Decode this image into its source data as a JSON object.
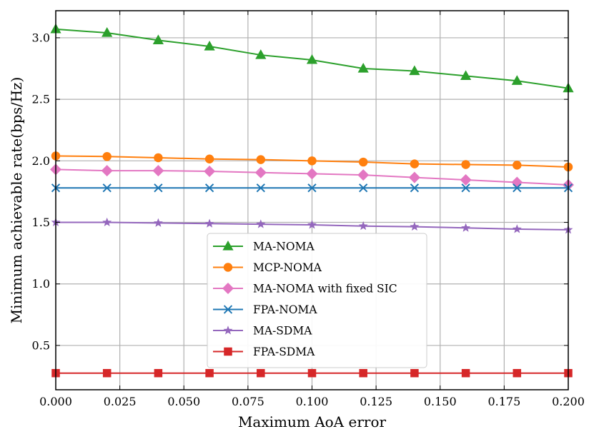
{
  "chart_data": {
    "type": "line",
    "xlabel": "Maximum AoA error",
    "ylabel": "Minimum achievable rate(bps/Hz)",
    "xlim": [
      0,
      0.2
    ],
    "ylim": [
      0.14,
      3.22
    ],
    "xticks": [
      "0.000",
      "0.025",
      "0.050",
      "0.075",
      "0.100",
      "0.125",
      "0.150",
      "0.175",
      "0.200"
    ],
    "xtick_values": [
      0,
      0.025,
      0.05,
      0.075,
      0.1,
      0.125,
      0.15,
      0.175,
      0.2
    ],
    "yticks": [
      "0.5",
      "1.0",
      "1.5",
      "2.0",
      "2.5",
      "3.0"
    ],
    "ytick_values": [
      0.5,
      1.0,
      1.5,
      2.0,
      2.5,
      3.0
    ],
    "grid": true,
    "legend_position": "center",
    "x": [
      0,
      0.02,
      0.04,
      0.06,
      0.08,
      0.1,
      0.12,
      0.14,
      0.16,
      0.18,
      0.2
    ],
    "series": [
      {
        "name": "MA-NOMA",
        "color": "#2ca02c",
        "marker": "triangle",
        "values": [
          3.07,
          3.04,
          2.98,
          2.93,
          2.86,
          2.82,
          2.75,
          2.73,
          2.69,
          2.65,
          2.59
        ]
      },
      {
        "name": "MCP-NOMA",
        "color": "#ff7f0e",
        "marker": "circle",
        "values": [
          2.04,
          2.035,
          2.025,
          2.015,
          2.01,
          2.0,
          1.99,
          1.975,
          1.97,
          1.965,
          1.95
        ]
      },
      {
        "name": "MA-NOMA with fixed SIC",
        "color": "#e377c2",
        "marker": "diamond",
        "values": [
          1.93,
          1.92,
          1.92,
          1.915,
          1.905,
          1.895,
          1.885,
          1.865,
          1.845,
          1.825,
          1.805
        ]
      },
      {
        "name": "FPA-NOMA",
        "color": "#1f77b4",
        "marker": "x",
        "values": [
          1.78,
          1.78,
          1.78,
          1.78,
          1.78,
          1.78,
          1.78,
          1.78,
          1.78,
          1.78,
          1.78
        ]
      },
      {
        "name": "MA-SDMA",
        "color": "#9467bd",
        "marker": "star",
        "values": [
          1.5,
          1.5,
          1.495,
          1.49,
          1.485,
          1.48,
          1.47,
          1.465,
          1.455,
          1.445,
          1.44
        ]
      },
      {
        "name": "FPA-SDMA",
        "color": "#d62728",
        "marker": "square",
        "values": [
          0.275,
          0.275,
          0.275,
          0.275,
          0.275,
          0.275,
          0.275,
          0.275,
          0.275,
          0.275,
          0.275
        ]
      }
    ]
  }
}
